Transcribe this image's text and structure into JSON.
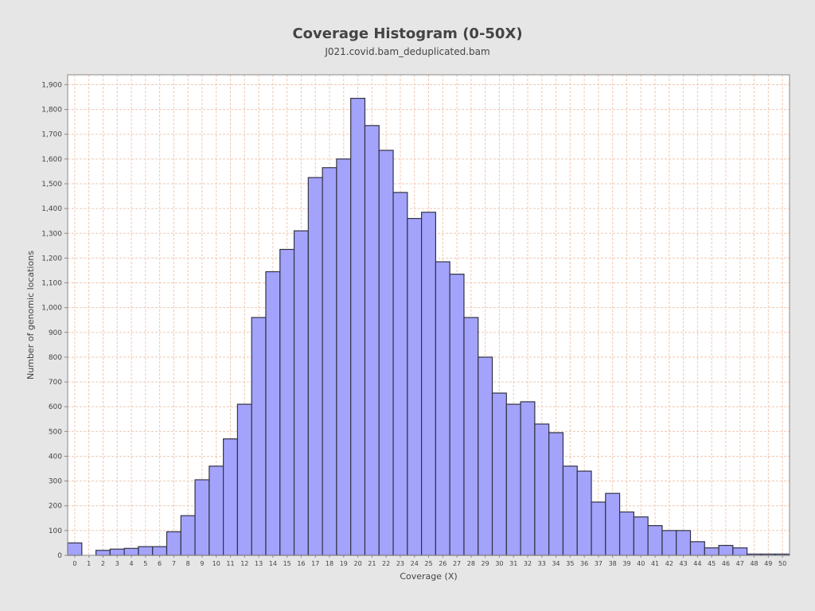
{
  "chart_data": {
    "type": "bar",
    "title": "Coverage Histogram (0-50X)",
    "subtitle": "J021.covid.bam_deduplicated.bam",
    "xlabel": "Coverage (X)",
    "ylabel": "Number of genomic locations",
    "categories": [
      "0",
      "1",
      "2",
      "3",
      "4",
      "5",
      "6",
      "7",
      "8",
      "9",
      "10",
      "11",
      "12",
      "13",
      "14",
      "15",
      "16",
      "17",
      "18",
      "19",
      "20",
      "21",
      "22",
      "23",
      "24",
      "25",
      "26",
      "27",
      "28",
      "29",
      "30",
      "31",
      "32",
      "33",
      "34",
      "35",
      "36",
      "37",
      "38",
      "39",
      "40",
      "41",
      "42",
      "43",
      "44",
      "45",
      "46",
      "47",
      "48",
      "49",
      "50"
    ],
    "values": [
      50,
      0,
      20,
      25,
      28,
      35,
      35,
      95,
      160,
      305,
      360,
      470,
      610,
      960,
      1145,
      1235,
      1310,
      1525,
      1565,
      1600,
      1845,
      1735,
      1635,
      1465,
      1360,
      1385,
      1185,
      1135,
      960,
      800,
      655,
      610,
      620,
      530,
      495,
      360,
      340,
      215,
      250,
      175,
      155,
      120,
      100,
      100,
      55,
      30,
      40,
      30,
      5,
      5,
      5
    ],
    "ylim": [
      0,
      1940
    ],
    "yticks": [
      0,
      100,
      200,
      300,
      400,
      500,
      600,
      700,
      800,
      900,
      1000,
      1100,
      1200,
      1300,
      1400,
      1500,
      1600,
      1700,
      1800,
      1900
    ],
    "ytick_labels": [
      "0",
      "100",
      "200",
      "300",
      "400",
      "500",
      "600",
      "700",
      "800",
      "900",
      "1,000",
      "1,100",
      "1,200",
      "1,300",
      "1,400",
      "1,500",
      "1,600",
      "1,700",
      "1,800",
      "1,900"
    ],
    "grid": true,
    "legend": "none",
    "colors": {
      "bar_fill": "#a3a3fc",
      "bar_stroke": "#333344",
      "grid": "#f0c8b0",
      "plot_bg": "#ffffff",
      "page_bg": "#e6e6e6",
      "text": "#444444"
    }
  }
}
